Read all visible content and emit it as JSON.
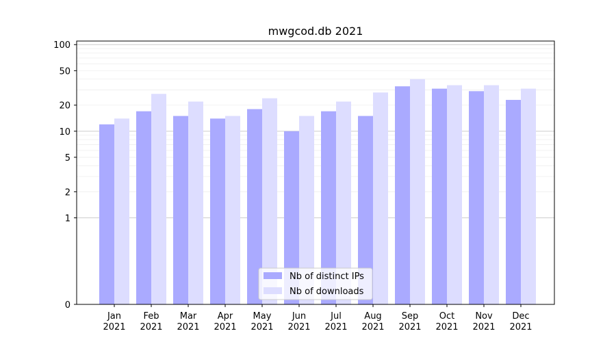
{
  "chart_data": {
    "type": "bar",
    "title": "mwgcod.db 2021",
    "xlabel": "",
    "ylabel": "",
    "categories": [
      "Jan\n2021",
      "Feb\n2021",
      "Mar\n2021",
      "Apr\n2021",
      "May\n2021",
      "Jun\n2021",
      "Jul\n2021",
      "Aug\n2021",
      "Sep\n2021",
      "Oct\n2021",
      "Nov\n2021",
      "Dec\n2021"
    ],
    "series": [
      {
        "name": "Nb of distinct IPs",
        "color": "#aaaaff",
        "values": [
          12,
          17,
          15,
          14,
          18,
          10,
          17,
          15,
          33,
          31,
          29,
          23
        ]
      },
      {
        "name": "Nb of downloads",
        "color": "#ddddff",
        "values": [
          14,
          27,
          22,
          15,
          24,
          15,
          22,
          28,
          40,
          34,
          34,
          31
        ]
      }
    ],
    "y_scale": "symlog",
    "ylim": [
      0,
      110
    ],
    "yticks": [
      0,
      1,
      2,
      5,
      10,
      20,
      50,
      100
    ],
    "grid": true,
    "legend_position": "lower center"
  }
}
